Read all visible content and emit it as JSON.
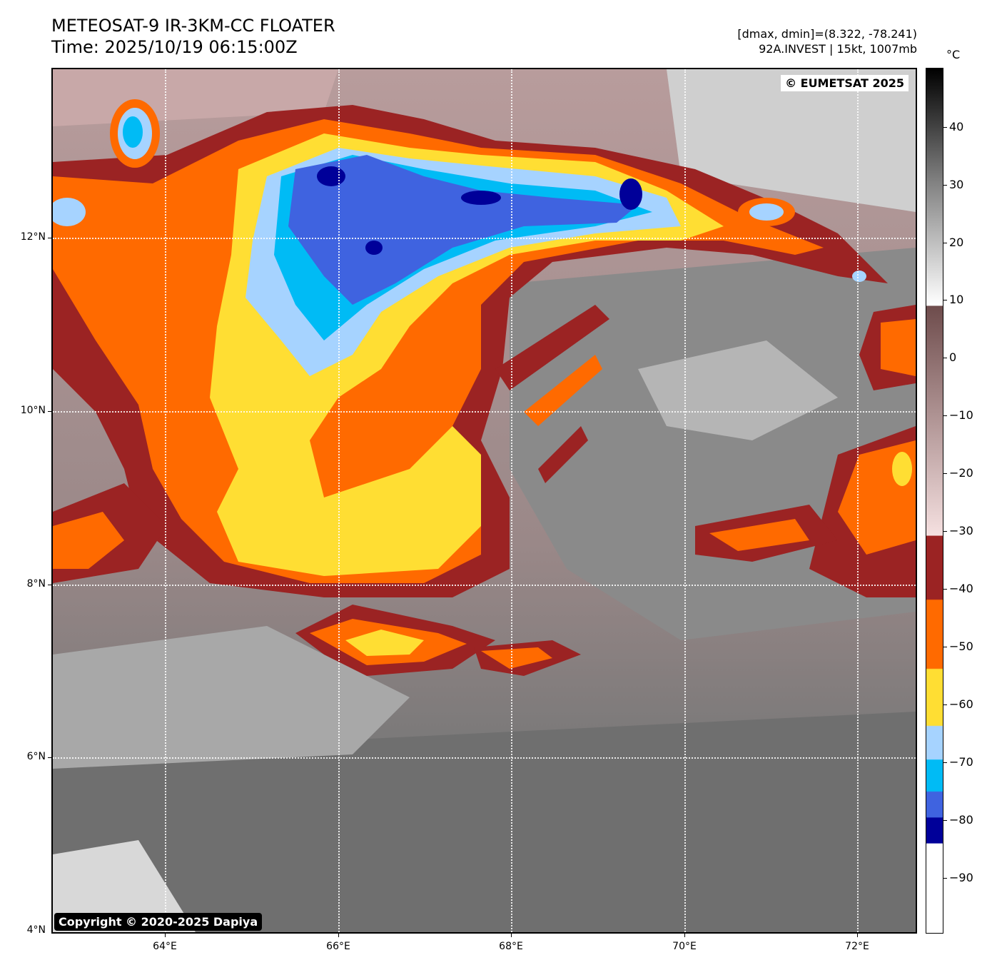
{
  "title": {
    "line1": "METEOSAT-9 IR-3KM-CC FLOATER",
    "line2": "Time: 2025/10/19 06:15:00Z"
  },
  "meta": {
    "line1": "[dmax, dmin]=(8.322, -78.241)",
    "line2": "92A.INVEST | 15kt, 1007mb"
  },
  "credits": {
    "top_right": "© EUMETSAT 2025",
    "bottom_left": "Copyright © 2020-2025 Dapiya"
  },
  "axes": {
    "lat_labels": [
      "12°N",
      "10°N",
      "8°N",
      "6°N",
      "4°N"
    ],
    "lon_labels": [
      "64°E",
      "66°E",
      "68°E",
      "70°E",
      "72°E"
    ]
  },
  "colorbar": {
    "unit": "°C",
    "labels": [
      "40",
      "30",
      "20",
      "10",
      "0",
      "−10",
      "−20",
      "−30",
      "−40",
      "−50",
      "−60",
      "−70",
      "−80",
      "−90"
    ],
    "colors": {
      "warm_top": "#000000",
      "warm_mid": "#808080",
      "warm_low": "#ffffff",
      "brown_top": "#6e4c4c",
      "pink": "#f5e0e0",
      "dark_red": "#9b2323",
      "orange": "#ff6a00",
      "yellow": "#ffde33",
      "light_blue": "#a6d3ff",
      "cyan": "#00bbf5",
      "royal_blue": "#3f63e0",
      "navy": "#000099",
      "coldest": "#ffffff"
    }
  }
}
